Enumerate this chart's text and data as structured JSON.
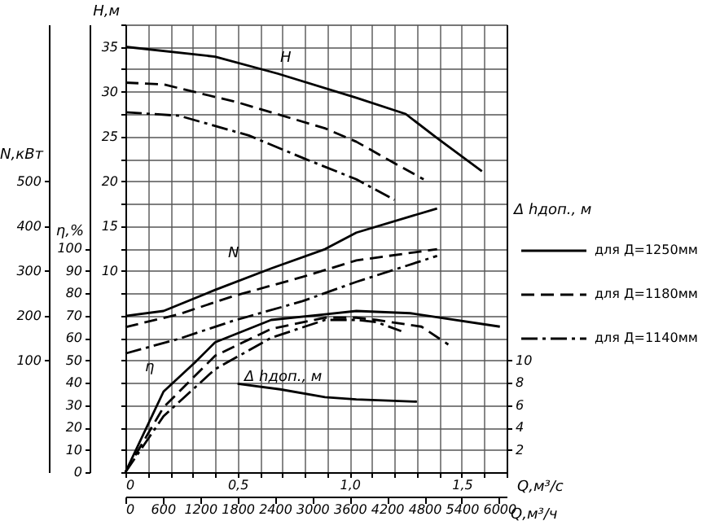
{
  "chart_data": [
    {
      "type": "line",
      "xlabel": "Q,м³/с",
      "x2label": "Q,м³/ч",
      "ylabel": "H,м",
      "y2label": "Δ hдоп., м",
      "y3label": "N,кВт",
      "xlim": [
        0,
        1.7
      ],
      "xticks": [
        {
          "value": 0,
          "label": "0"
        },
        {
          "value": 0.1,
          "label": null
        },
        {
          "value": 0.2,
          "label": null
        },
        {
          "value": 0.3,
          "label": null
        },
        {
          "value": 0.4,
          "label": null
        },
        {
          "value": 0.5,
          "label": "0,5"
        },
        {
          "value": 0.6,
          "label": null
        },
        {
          "value": 0.7,
          "label": null
        },
        {
          "value": 0.8,
          "label": null
        },
        {
          "value": 0.9,
          "label": null
        },
        {
          "value": 1.0,
          "label": "1,0"
        },
        {
          "value": 1.1,
          "label": null
        },
        {
          "value": 1.2,
          "label": null
        },
        {
          "value": 1.3,
          "label": null
        },
        {
          "value": 1.4,
          "label": null
        },
        {
          "value": 1.5,
          "label": "1,5"
        },
        {
          "value": 1.6,
          "label": null
        },
        {
          "value": 1.7,
          "label": null
        }
      ],
      "x2lim": [
        0,
        6120
      ],
      "x2ticks": [
        0,
        600,
        1200,
        1800,
        2400,
        3000,
        3600,
        4200,
        4800,
        5400,
        6000
      ],
      "ylim": [
        -12.5,
        37.5
      ],
      "yticks": [
        {
          "value": -12.5,
          "label": null
        },
        {
          "value": -10,
          "label": null
        },
        {
          "value": -7.5,
          "label": null
        },
        {
          "value": -5,
          "label": null
        },
        {
          "value": -2.5,
          "label": null
        },
        {
          "value": 0,
          "label": null
        },
        {
          "value": 2.5,
          "label": null
        },
        {
          "value": 5,
          "label": null
        },
        {
          "value": 7.5,
          "label": null
        },
        10,
        {
          "value": 12.5,
          "label": null
        },
        15,
        {
          "value": 17.5,
          "label": null
        },
        20,
        {
          "value": 22.5,
          "label": null
        },
        25,
        {
          "value": 27.5,
          "label": null
        },
        30,
        {
          "value": 32.5,
          "label": null
        },
        35,
        {
          "value": 37.5,
          "label": null
        }
      ],
      "y2lim": [
        0,
        40
      ],
      "y2ticks": [
        2,
        4,
        6,
        8,
        10
      ],
      "y3lim": [
        -150,
        850
      ],
      "y3ticks": [
        100,
        200,
        300,
        400,
        500
      ],
      "grid": true,
      "legend": "right",
      "series": [
        {
          "name": "для Д=1250мм",
          "color": "#000000",
          "line_style": "solid",
          "x": [
            0,
            0.4,
            0.68,
            1.03,
            1.25,
            1.39,
            1.59
          ],
          "values": [
            35,
            33.9,
            32.0,
            29.3,
            27.5,
            24.8,
            21.1
          ]
        },
        {
          "name": "для Д=1180мм",
          "color": "#000000",
          "line_style": "dashed",
          "x": [
            0,
            0.17,
            0.5,
            0.89,
            1.03,
            1.2,
            1.33
          ],
          "values": [
            31,
            30.8,
            28.8,
            25.9,
            24.4,
            22.0,
            20.2
          ]
        },
        {
          "name": "для Д=1140мм",
          "color": "#000000",
          "line_style": "dashdot",
          "x": [
            0,
            0.24,
            0.55,
            0.79,
            1.03,
            1.2
          ],
          "values": [
            27.7,
            27.3,
            25.1,
            22.6,
            20.2,
            17.9
          ]
        },
        {
          "color": "#000000",
          "line_style": "solid",
          "axis": "y3",
          "x": [
            0,
            0.17,
            0.4,
            0.65,
            0.89,
            1.03,
            1.39
          ],
          "values": [
            199,
            210,
            257,
            305,
            348,
            385,
            439
          ]
        },
        {
          "color": "#000000",
          "line_style": "dashed",
          "axis": "y3",
          "x": [
            0,
            0.24,
            0.48,
            0.79,
            1.03,
            1.39
          ],
          "values": [
            174,
            203,
            243,
            286,
            323,
            348
          ]
        },
        {
          "color": "#000000",
          "line_style": "dashdot",
          "axis": "y3",
          "x": [
            0,
            0.24,
            0.48,
            0.79,
            1.03,
            1.39
          ],
          "values": [
            115,
            148,
            188,
            232,
            275,
            333
          ]
        },
        {
          "color": "#000000",
          "line_style": "solid",
          "axis": "y2",
          "x": [
            0.5,
            0.69,
            0.89,
            1.03,
            1.3
          ],
          "values": [
            7.9,
            7.4,
            6.7,
            6.5,
            6.3
          ]
        }
      ],
      "annotations": [
        "H",
        "N",
        "Δ hдоп., м"
      ]
    },
    {
      "type": "line",
      "ylabel": "η,%",
      "xlim": [
        0,
        1.7
      ],
      "ylim": [
        0,
        200
      ],
      "yticks": [
        0,
        10,
        20,
        30,
        40,
        50,
        60,
        70,
        80,
        90,
        100
      ],
      "tick_labels": "y",
      "series": [
        {
          "color": "#000000",
          "line_style": "solid",
          "x": [
            0,
            0.17,
            0.31,
            0.4,
            0.65,
            0.89,
            1.03,
            1.27,
            1.67
          ],
          "values": [
            0,
            36,
            49,
            58,
            68,
            70.5,
            72,
            71,
            65
          ]
        },
        {
          "color": "#000000",
          "line_style": "dashed",
          "x": [
            0,
            0.17,
            0.4,
            0.65,
            0.89,
            1.03,
            1.12,
            1.32,
            1.44
          ],
          "values": [
            0,
            29,
            52,
            64,
            69,
            69,
            68,
            65,
            57
          ]
        },
        {
          "color": "#000000",
          "line_style": "dashdot",
          "x": [
            0,
            0.17,
            0.4,
            0.65,
            0.89,
            1.03,
            1.12,
            1.23
          ],
          "values": [
            0,
            25,
            46,
            60,
            68,
            68,
            67,
            63
          ]
        }
      ],
      "annotations": [
        "η"
      ]
    }
  ]
}
